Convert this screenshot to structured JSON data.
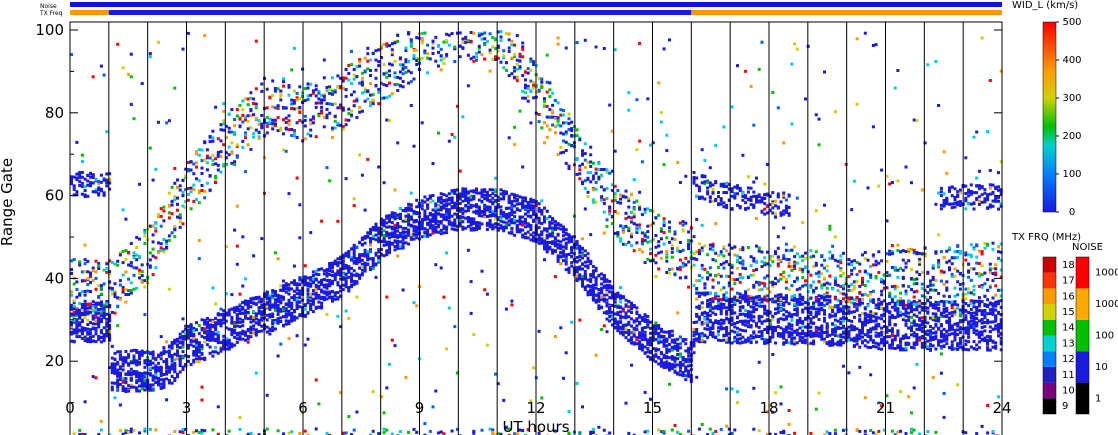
{
  "chart_data": {
    "type": "heatmap",
    "xlabel": "UT hours",
    "ylabel": "Range Gate",
    "xlim": [
      0,
      24
    ],
    "ylim": [
      0,
      100
    ],
    "x_ticks": [
      "0",
      "3",
      "6",
      "9",
      "12",
      "15",
      "18",
      "21",
      "24"
    ],
    "y_ticks": [
      "0",
      "20",
      "40",
      "60",
      "80",
      "100"
    ],
    "vertical_gridlines_hours": [
      1,
      2,
      3,
      4,
      5,
      6,
      7,
      8,
      9,
      10,
      11,
      12,
      13,
      14,
      15,
      16,
      17,
      18,
      19,
      20,
      21,
      22,
      23
    ],
    "top_bars": {
      "noise_label": "Noise",
      "txfreq_label": "TX Freq",
      "noise_color": "#1010e0",
      "txfreq_segments": [
        {
          "start": 0,
          "end": 1,
          "color": "#ff9900"
        },
        {
          "start": 1,
          "end": 16,
          "color": "#1a1ae0"
        },
        {
          "start": 16,
          "end": 24,
          "color": "#ff9900"
        }
      ]
    },
    "main_colorbar": {
      "title": "WID_L (km/s)",
      "ticks": [
        "0",
        "100",
        "200",
        "300",
        "400",
        "500"
      ],
      "range": [
        0,
        500
      ]
    },
    "txfreq_colorbar": {
      "title": "TX FRQ (MHz)",
      "ticks": [
        "9",
        "10",
        "11",
        "12",
        "13",
        "14",
        "15",
        "16",
        "17",
        "18"
      ],
      "colors": [
        "#000000",
        "#7a0080",
        "#2020c0",
        "#0080ff",
        "#00d0d0",
        "#00c000",
        "#d0d000",
        "#ff9900",
        "#ff3300",
        "#cc0000"
      ]
    },
    "noise_colorbar": {
      "title": "NOISE",
      "ticks": [
        "1",
        "10",
        "100",
        "1000",
        "10000"
      ],
      "colors": [
        "#000000",
        "#1a1ae0",
        "#00c000",
        "#ffaa00",
        "#ff0000"
      ]
    },
    "bands": [
      {
        "name": "low echo band",
        "points": [
          [
            0,
            30
          ],
          [
            1,
            30
          ],
          [
            1.05,
            18
          ],
          [
            2,
            18
          ],
          [
            2.5,
            19
          ],
          [
            3,
            24
          ],
          [
            4,
            28
          ],
          [
            5,
            32
          ],
          [
            6,
            36
          ],
          [
            7,
            41
          ],
          [
            8,
            50
          ],
          [
            9,
            55
          ],
          [
            10,
            57
          ],
          [
            11,
            57
          ],
          [
            12,
            54
          ],
          [
            13,
            45
          ],
          [
            14,
            33
          ],
          [
            15,
            25
          ],
          [
            16,
            20
          ],
          [
            16.05,
            31
          ],
          [
            20,
            30
          ],
          [
            21,
            29
          ],
          [
            24,
            29
          ]
        ]
      },
      {
        "name": "upper echo band",
        "points": [
          [
            1,
            38
          ],
          [
            2,
            46
          ],
          [
            3,
            62
          ],
          [
            4,
            73
          ],
          [
            5,
            82
          ],
          [
            6,
            80
          ],
          [
            7,
            84
          ],
          [
            8,
            90
          ],
          [
            9,
            96
          ],
          [
            10,
            100
          ],
          [
            11,
            100
          ],
          [
            12,
            85
          ],
          [
            13,
            70
          ],
          [
            14,
            57
          ],
          [
            15,
            50
          ],
          [
            16,
            46
          ],
          [
            16.05,
            42
          ],
          [
            20,
            40
          ],
          [
            24,
            42
          ]
        ]
      },
      {
        "name": "60-gate band",
        "points": [
          [
            0,
            63
          ],
          [
            1,
            63
          ],
          [
            16.05,
            63
          ],
          [
            17,
            60
          ],
          [
            18.2,
            58
          ],
          [
            19,
            58
          ],
          [
            22.5,
            60
          ],
          [
            24,
            60
          ]
        ]
      }
    ]
  }
}
